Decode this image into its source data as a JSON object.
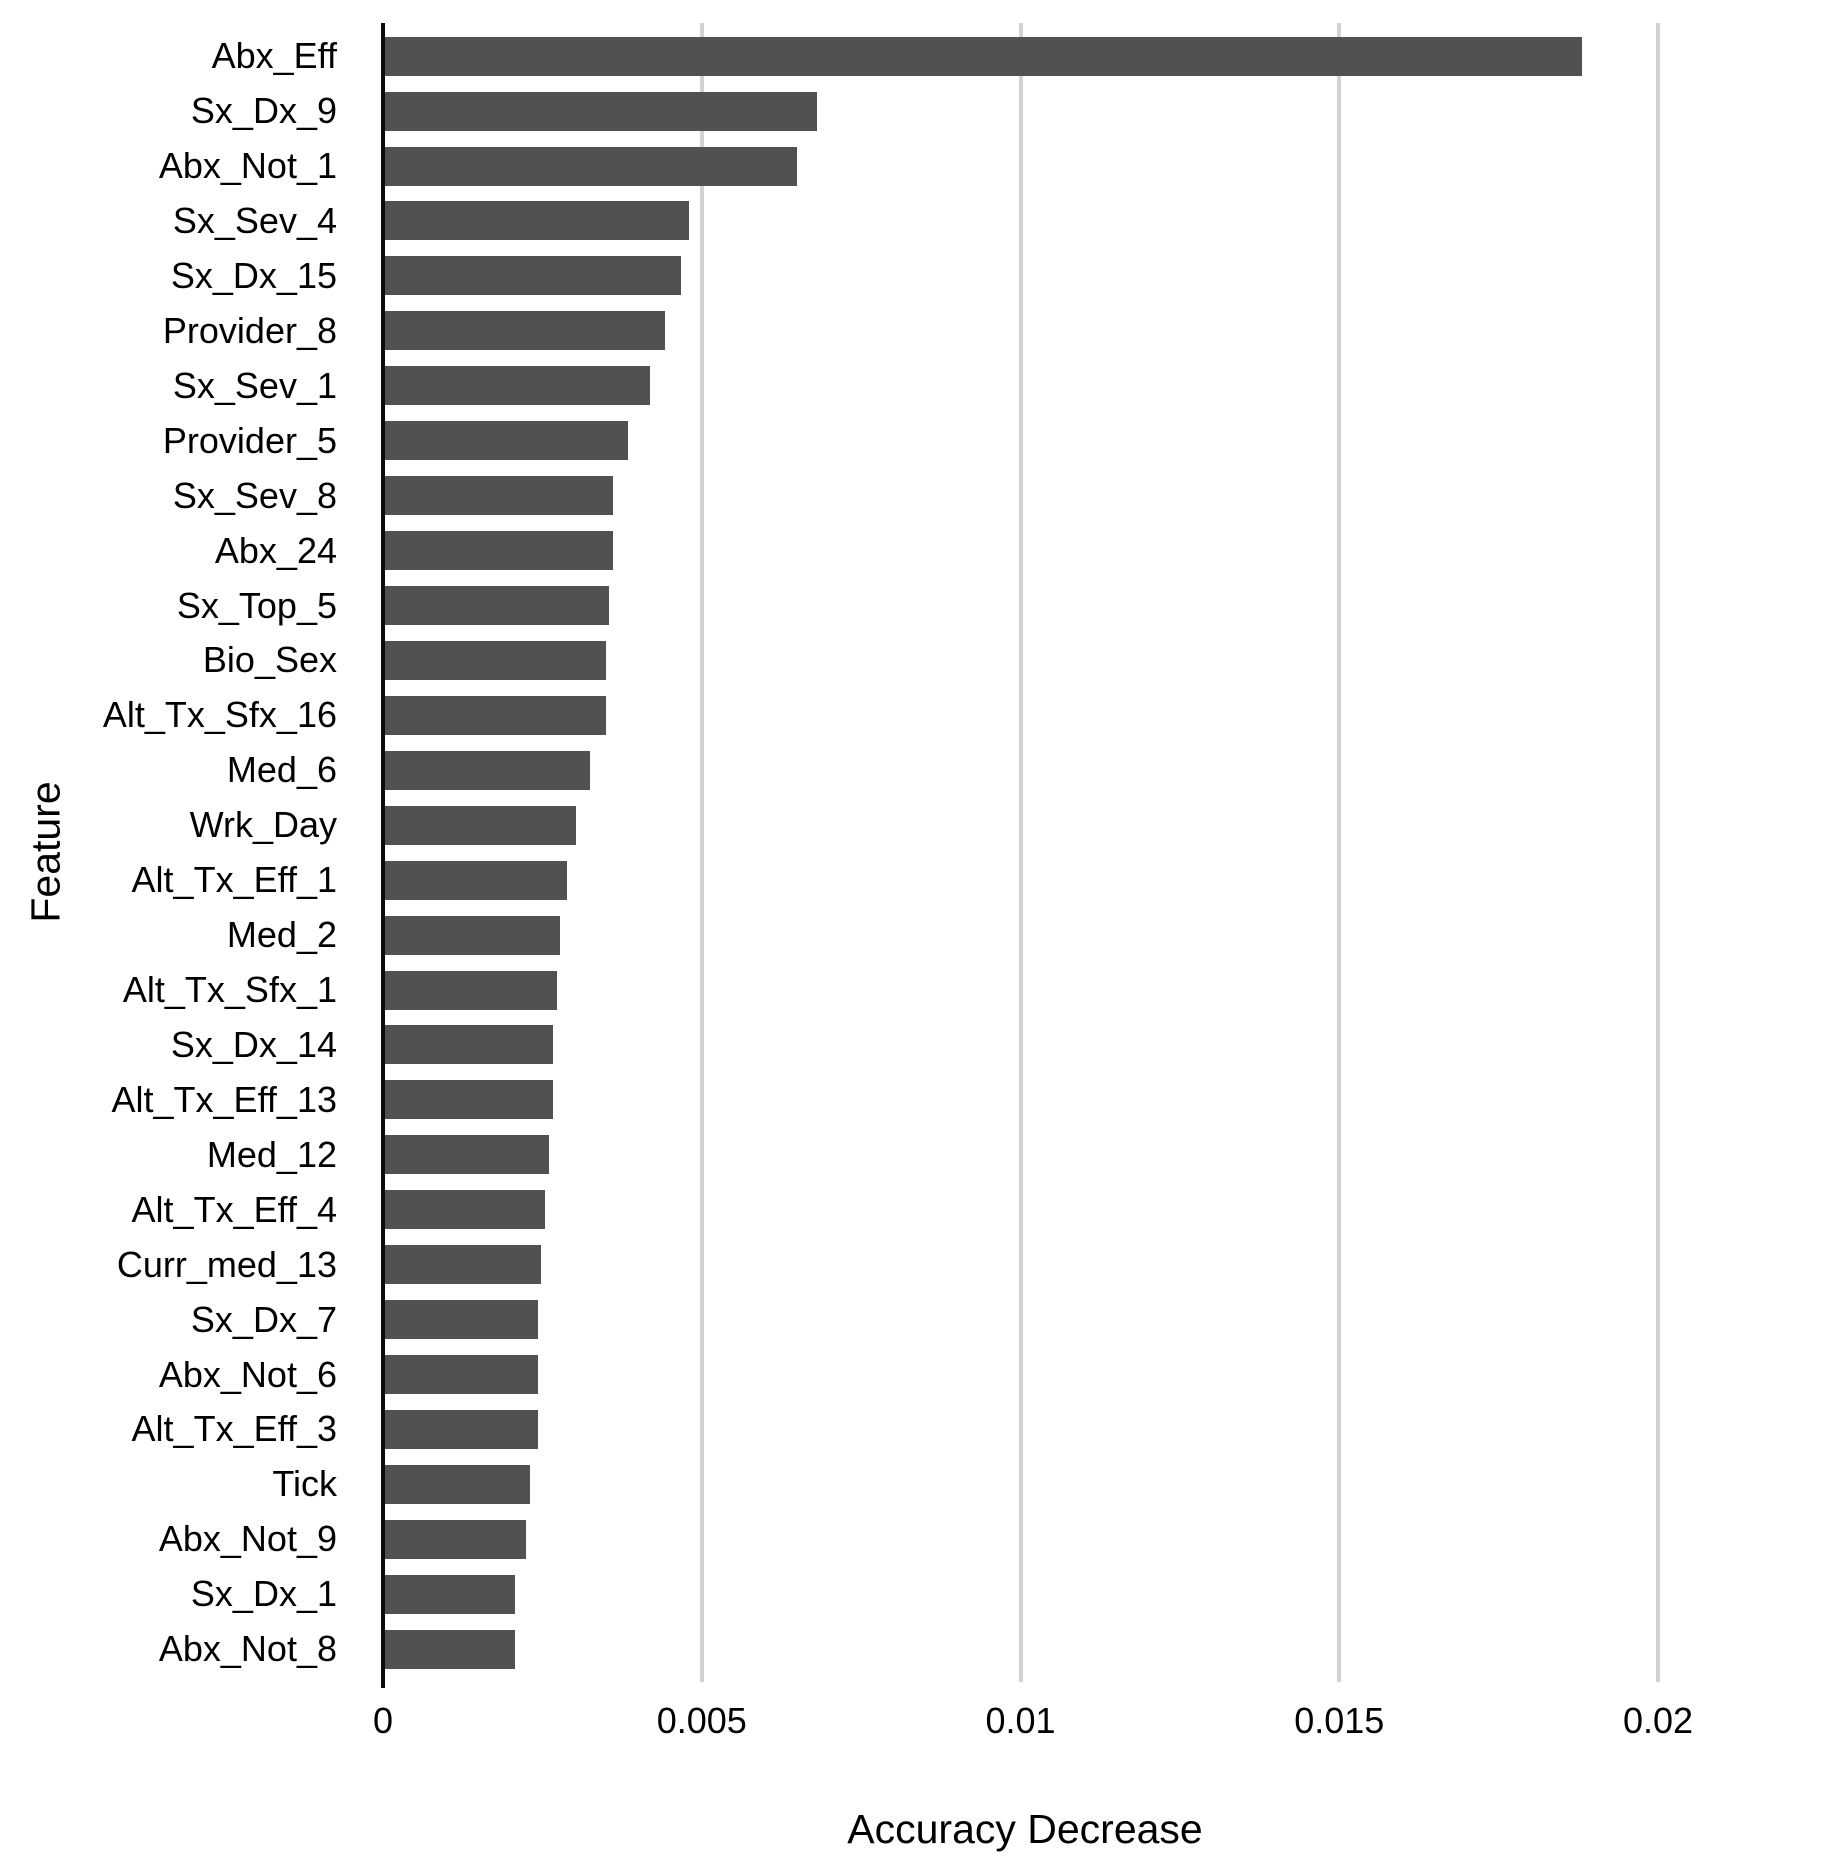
{
  "chart_data": {
    "type": "bar",
    "orientation": "horizontal",
    "xlabel": "Accuracy Decrease",
    "ylabel": "Feature",
    "categories": [
      "Abx_Eff",
      "Sx_Dx_9",
      "Abx_Not_1",
      "Sx_Sev_4",
      "Sx_Dx_15",
      "Provider_8",
      "Sx_Sev_1",
      "Provider_5",
      "Sx_Sev_8",
      "Abx_24",
      "Sx_Top_5",
      "Bio_Sex",
      "Alt_Tx_Sfx_16",
      "Med_6",
      "Wrk_Day",
      "Alt_Tx_Eff_1",
      "Med_2",
      "Alt_Tx_Sfx_1",
      "Sx_Dx_14",
      "Alt_Tx_Eff_13",
      "Med_12",
      "Alt_Tx_Eff_4",
      "Curr_med_13",
      "Sx_Dx_7",
      "Abx_Not_6",
      "Alt_Tx_Eff_3",
      "Tick",
      "Abx_Not_9",
      "Sx_Dx_1",
      "Abx_Not_8"
    ],
    "values": [
      0.0188,
      0.0068,
      0.0065,
      0.0048,
      0.00467,
      0.00443,
      0.00419,
      0.00384,
      0.00361,
      0.0036,
      0.00355,
      0.0035,
      0.0035,
      0.00325,
      0.00302,
      0.00289,
      0.00278,
      0.00273,
      0.00267,
      0.00267,
      0.0026,
      0.00254,
      0.00248,
      0.00243,
      0.00243,
      0.00243,
      0.00231,
      0.00224,
      0.00207,
      0.00207
    ],
    "x_ticks": [
      0,
      0.005,
      0.01,
      0.015,
      0.02
    ],
    "x_tick_labels": [
      "0",
      "0.005",
      "0.01",
      "0.015",
      "0.02"
    ],
    "xlim": [
      0,
      0.0204
    ],
    "grid": "vertical-major-only",
    "legend": "none",
    "bar_color": "#515151",
    "gridline_color": "#d3d3d3",
    "axis_color": "#0a0a0a",
    "text_color": "#000000"
  }
}
